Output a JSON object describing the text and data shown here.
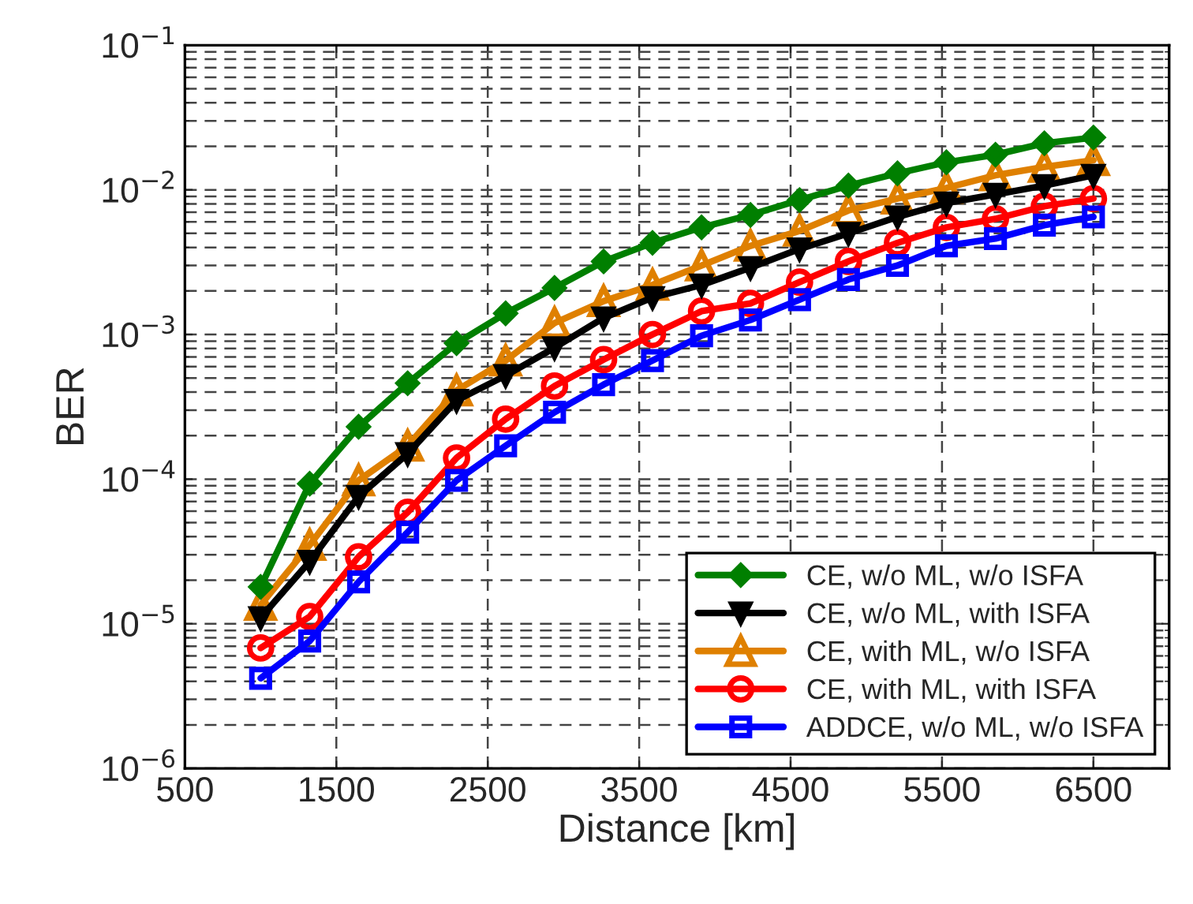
{
  "chart_data": {
    "type": "line",
    "xlabel": "Distance [km]",
    "ylabel": "BER",
    "x": [
      1000,
      1324,
      1647,
      1971,
      2294,
      2618,
      2941,
      3265,
      3588,
      3912,
      4235,
      4559,
      4882,
      5206,
      5529,
      5853,
      6176,
      6500
    ],
    "series": [
      {
        "name": "CE, w/o ML, w/o ISFA",
        "color": "#007f00",
        "marker": "diamond",
        "values": [
          1.8e-05,
          9.3e-05,
          0.00023,
          0.00046,
          0.00087,
          0.0014,
          0.0021,
          0.0032,
          0.0043,
          0.0055,
          0.0067,
          0.0085,
          0.0107,
          0.013,
          0.0155,
          0.0175,
          0.021,
          0.023
        ]
      },
      {
        "name": "CE, w/o ML, with ISFA",
        "color": "#000000",
        "marker": "triangle_down",
        "values": [
          1.1e-05,
          2.7e-05,
          7.6e-05,
          0.00015,
          0.00035,
          0.00052,
          0.00081,
          0.0013,
          0.0018,
          0.0022,
          0.0029,
          0.0039,
          0.005,
          0.0065,
          0.0081,
          0.0093,
          0.0107,
          0.0126
        ]
      },
      {
        "name": "CE, with ML, w/o ISFA",
        "color": "#df8000",
        "marker": "triangle",
        "values": [
          1.35e-05,
          3.5e-05,
          9.8e-05,
          0.00017,
          0.00041,
          0.00066,
          0.0012,
          0.0017,
          0.0022,
          0.003,
          0.0041,
          0.0052,
          0.0072,
          0.0087,
          0.0103,
          0.0126,
          0.0144,
          0.016
        ]
      },
      {
        "name": "CE, with ML, with ISFA",
        "color": "#ff0000",
        "marker": "circle",
        "values": [
          6.8e-06,
          1.12e-05,
          2.9e-05,
          5.9e-05,
          0.00014,
          0.00026,
          0.00044,
          0.00067,
          0.001,
          0.00145,
          0.00164,
          0.0023,
          0.0032,
          0.0043,
          0.0055,
          0.0063,
          0.0077,
          0.0087
        ]
      },
      {
        "name": "ADDCE, w/o ML, w/o ISFA",
        "color": "#0000ff",
        "marker": "square",
        "values": [
          4.2e-06,
          7.6e-06,
          1.95e-05,
          4.3e-05,
          9.8e-05,
          0.00017,
          0.00029,
          0.00045,
          0.00066,
          0.00098,
          0.00126,
          0.00174,
          0.0024,
          0.003,
          0.0041,
          0.0046,
          0.0057,
          0.0065
        ]
      }
    ],
    "log": "y",
    "xlim": [
      500,
      7000
    ],
    "xticks": [
      500,
      1500,
      2500,
      3500,
      4500,
      5500,
      6500
    ],
    "ylim": [
      1e-06,
      0.1
    ],
    "yticks": [
      {
        "value": 1e-06,
        "label": "10$^{−6}$"
      },
      {
        "value": 1e-05,
        "label": "10$^{−5}$"
      },
      {
        "value": 0.0001,
        "label": "10$^{−4}$"
      },
      {
        "value": 0.001,
        "label": "10$^{−3}$"
      },
      {
        "value": 0.01,
        "label": "10$^{−2}$"
      },
      {
        "value": 0.1,
        "label": "10$^{−1}$"
      }
    ],
    "grid": true,
    "legend": "bottom right",
    "line_style": "solid"
  }
}
